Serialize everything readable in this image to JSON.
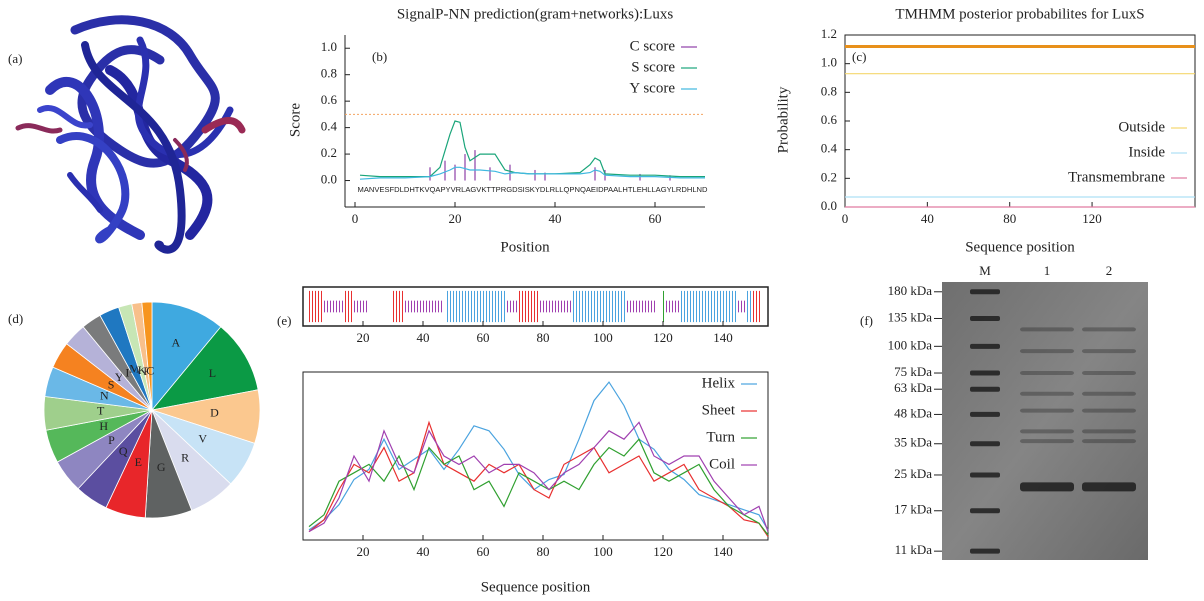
{
  "panel_a": {
    "label": "(a)"
  },
  "chart_data": [
    {
      "type": "line",
      "panel": "(b)",
      "title": "SignalP-NN prediction(gram+networks):Luxs",
      "xlabel": "Position",
      "ylabel": "Score",
      "sequence": "MANVESFDLDHTKVQAPYVRLAGVKTTPRGDSISKYDLRLLQPNQAEIDPAALHTLEHLLAGYLRDHLND",
      "xlim": [
        -2,
        70
      ],
      "xticks": [
        0,
        20,
        40,
        60
      ],
      "ylim": [
        -0.2,
        1.1
      ],
      "yticks": [
        {
          "value": 0,
          "label": "0.0"
        },
        {
          "value": 0.2,
          "label": "0.2"
        },
        {
          "value": 0.4,
          "label": "0.4"
        },
        {
          "value": 0.6,
          "label": "0.6"
        },
        {
          "value": 0.8,
          "label": "0.8"
        },
        {
          "value": 1.0,
          "label": "1.0"
        }
      ],
      "cutoff": 0.5,
      "cutoff_color": "#f4a460",
      "legend": "upper right",
      "series": [
        {
          "name": "C score",
          "color": "#8e3fa8",
          "style": "bars",
          "x": [
            15,
            18,
            20,
            22,
            24,
            27,
            31,
            36,
            38,
            48,
            50,
            57,
            63
          ],
          "values": [
            0.1,
            0.15,
            0.12,
            0.2,
            0.23,
            0.1,
            0.12,
            0.08,
            0.06,
            0.1,
            0.08,
            0.05,
            0.04
          ]
        },
        {
          "name": "S score",
          "color": "#1aa57a",
          "style": "line",
          "x": [
            1,
            5,
            10,
            15,
            17,
            19,
            20,
            21,
            22,
            23,
            25,
            28,
            30,
            32,
            35,
            40,
            45,
            47,
            48,
            49,
            50,
            55,
            60,
            65,
            70
          ],
          "values": [
            0.04,
            0.03,
            0.03,
            0.03,
            0.1,
            0.35,
            0.45,
            0.44,
            0.25,
            0.15,
            0.2,
            0.2,
            0.08,
            0.06,
            0.05,
            0.05,
            0.06,
            0.12,
            0.17,
            0.15,
            0.05,
            0.04,
            0.04,
            0.03,
            0.03
          ]
        },
        {
          "name": "Y score",
          "color": "#3fb8e0",
          "style": "line",
          "x": [
            1,
            5,
            10,
            15,
            17,
            19,
            20,
            21,
            22,
            23,
            25,
            28,
            30,
            32,
            35,
            40,
            45,
            47,
            48,
            49,
            50,
            55,
            60,
            65,
            70
          ],
          "values": [
            0.01,
            0.02,
            0.02,
            0.03,
            0.05,
            0.08,
            0.1,
            0.1,
            0.09,
            0.08,
            0.08,
            0.07,
            0.05,
            0.06,
            0.05,
            0.05,
            0.05,
            0.06,
            0.08,
            0.07,
            0.04,
            0.03,
            0.03,
            0.02,
            0.02
          ]
        }
      ]
    },
    {
      "type": "line",
      "panel": "(c)",
      "title": "TMHMM posterior probabilites for LuxS",
      "xlabel": "Sequence position",
      "ylabel": "Probability",
      "xlim": [
        0,
        170
      ],
      "xticks": [
        0,
        40,
        80,
        120
      ],
      "ylim": [
        0,
        1.2
      ],
      "yticks": [
        {
          "value": 0,
          "label": "0.0"
        },
        {
          "value": 0.2,
          "label": "0.2"
        },
        {
          "value": 0.4,
          "label": "0.4"
        },
        {
          "value": 0.6,
          "label": "0.6"
        },
        {
          "value": 0.8,
          "label": "0.8"
        },
        {
          "value": 1.0,
          "label": "1.0"
        },
        {
          "value": 1.2,
          "label": "1.2"
        }
      ],
      "track": {
        "y": 1.12,
        "color": "#e8901a"
      },
      "legend": "center right",
      "series": [
        {
          "name": "Outside",
          "color": "#f5d76e",
          "style": "line",
          "x": [
            0,
            170
          ],
          "values": [
            0.93,
            0.93
          ]
        },
        {
          "name": "Inside",
          "color": "#aee0f5",
          "style": "line",
          "x": [
            0,
            170
          ],
          "values": [
            0.07,
            0.07
          ]
        },
        {
          "name": "Transmembrane",
          "color": "#e07aa0",
          "style": "line",
          "x": [
            0,
            170
          ],
          "values": [
            0,
            0
          ]
        }
      ]
    },
    {
      "type": "pie",
      "panel": "(d)",
      "categories": [
        "A",
        "L",
        "D",
        "V",
        "R",
        "G",
        "E",
        "Q",
        "P",
        "H",
        "T",
        "N",
        "S",
        "Y",
        "I",
        "M",
        "K",
        "F",
        "C"
      ],
      "values": [
        11,
        11,
        8,
        7,
        7,
        7,
        6,
        5,
        5,
        5,
        5,
        4.5,
        4,
        3.5,
        3,
        3,
        2,
        1.5,
        1.5
      ],
      "colors": [
        "#3fa9e0",
        "#0b9a45",
        "#fbc88f",
        "#c7e3f6",
        "#d9dcee",
        "#5f6262",
        "#e8262a",
        "#5b4ea0",
        "#8e86c1",
        "#55b85a",
        "#9fcf8c",
        "#6ab8e7",
        "#f58220",
        "#b5b2d8",
        "#7a7b7c",
        "#1f78c1",
        "#c7e6b5",
        "#f8c08b",
        "#f7951e"
      ]
    },
    {
      "type": "line",
      "panel": "(e)",
      "xlabel": "Sequence position",
      "xlim": [
        0,
        155
      ],
      "xticks": [
        20,
        40,
        60,
        80,
        100,
        120,
        140
      ],
      "ylim": [
        0,
        1
      ],
      "legend": "upper right",
      "x": [
        2,
        7,
        12,
        17,
        22,
        27,
        32,
        37,
        42,
        47,
        52,
        57,
        62,
        67,
        72,
        77,
        82,
        87,
        92,
        97,
        102,
        107,
        112,
        117,
        122,
        127,
        132,
        137,
        142,
        147,
        152,
        155
      ],
      "series": [
        {
          "name": "Helix",
          "color": "#4aa3df",
          "style": "line",
          "values": [
            0.06,
            0.12,
            0.21,
            0.36,
            0.42,
            0.6,
            0.42,
            0.48,
            0.54,
            0.42,
            0.54,
            0.68,
            0.65,
            0.54,
            0.39,
            0.3,
            0.36,
            0.39,
            0.6,
            0.83,
            0.94,
            0.8,
            0.6,
            0.54,
            0.42,
            0.36,
            0.27,
            0.24,
            0.21,
            0.18,
            0.15,
            0.06
          ]
        },
        {
          "name": "Sheet",
          "color": "#e83030",
          "style": "line",
          "values": [
            0.05,
            0.12,
            0.3,
            0.45,
            0.4,
            0.55,
            0.35,
            0.4,
            0.7,
            0.45,
            0.4,
            0.35,
            0.45,
            0.4,
            0.45,
            0.3,
            0.25,
            0.45,
            0.5,
            0.55,
            0.4,
            0.45,
            0.5,
            0.35,
            0.4,
            0.45,
            0.3,
            0.25,
            0.2,
            0.12,
            0.1,
            0.02
          ]
        },
        {
          "name": "Turn",
          "color": "#30a030",
          "style": "line",
          "values": [
            0.08,
            0.15,
            0.35,
            0.4,
            0.45,
            0.35,
            0.5,
            0.3,
            0.55,
            0.45,
            0.5,
            0.3,
            0.35,
            0.2,
            0.4,
            0.35,
            0.3,
            0.35,
            0.3,
            0.45,
            0.55,
            0.5,
            0.6,
            0.4,
            0.35,
            0.4,
            0.45,
            0.3,
            0.2,
            0.15,
            0.1,
            0.03
          ]
        },
        {
          "name": "Coil",
          "color": "#a040b0",
          "style": "line",
          "values": [
            0.05,
            0.1,
            0.25,
            0.5,
            0.35,
            0.65,
            0.45,
            0.4,
            0.65,
            0.5,
            0.45,
            0.5,
            0.4,
            0.45,
            0.45,
            0.4,
            0.3,
            0.4,
            0.45,
            0.55,
            0.65,
            0.6,
            0.7,
            0.5,
            0.45,
            0.5,
            0.5,
            0.35,
            0.25,
            0.15,
            0.2,
            0.05
          ]
        }
      ],
      "segments": [
        {
          "series": 1,
          "start": 2,
          "end": 7
        },
        {
          "series": 3,
          "start": 7,
          "end": 14
        },
        {
          "series": 1,
          "start": 14,
          "end": 17
        },
        {
          "series": 3,
          "start": 17,
          "end": 22
        },
        {
          "series": 1,
          "start": 30,
          "end": 34
        },
        {
          "series": 3,
          "start": 34,
          "end": 47
        },
        {
          "series": 0,
          "start": 48,
          "end": 68
        },
        {
          "series": 3,
          "start": 68,
          "end": 72
        },
        {
          "series": 1,
          "start": 72,
          "end": 79
        },
        {
          "series": 3,
          "start": 79,
          "end": 90
        },
        {
          "series": 0,
          "start": 90,
          "end": 108
        },
        {
          "series": 3,
          "start": 108,
          "end": 118
        },
        {
          "series": 2,
          "start": 120,
          "end": 121
        },
        {
          "series": 3,
          "start": 121,
          "end": 126
        },
        {
          "series": 0,
          "start": 126,
          "end": 145
        },
        {
          "series": 3,
          "start": 145,
          "end": 148
        },
        {
          "series": 0,
          "start": 148,
          "end": 150
        },
        {
          "series": 1,
          "start": 150,
          "end": 153
        }
      ]
    },
    {
      "type": "gel",
      "panel": "(f)",
      "lanes": [
        "M",
        "1",
        "2"
      ],
      "log_scale": true,
      "ylim": [
        200,
        10
      ],
      "yticks": [
        {
          "value": 180,
          "label": "180 kDa"
        },
        {
          "value": 135,
          "label": "135 kDa"
        },
        {
          "value": 100,
          "label": "100 kDa"
        },
        {
          "value": 75,
          "label": "75 kDa"
        },
        {
          "value": 63,
          "label": "63 kDa"
        },
        {
          "value": 48,
          "label": "48 kDa"
        },
        {
          "value": 35,
          "label": "35 kDa"
        },
        {
          "value": 25,
          "label": "25 kDa"
        },
        {
          "value": 17,
          "label": "17 kDa"
        },
        {
          "value": 11,
          "label": "11 kDa"
        }
      ],
      "sample_bands": [
        22,
        36,
        40,
        50,
        60,
        75,
        95,
        120
      ]
    }
  ]
}
